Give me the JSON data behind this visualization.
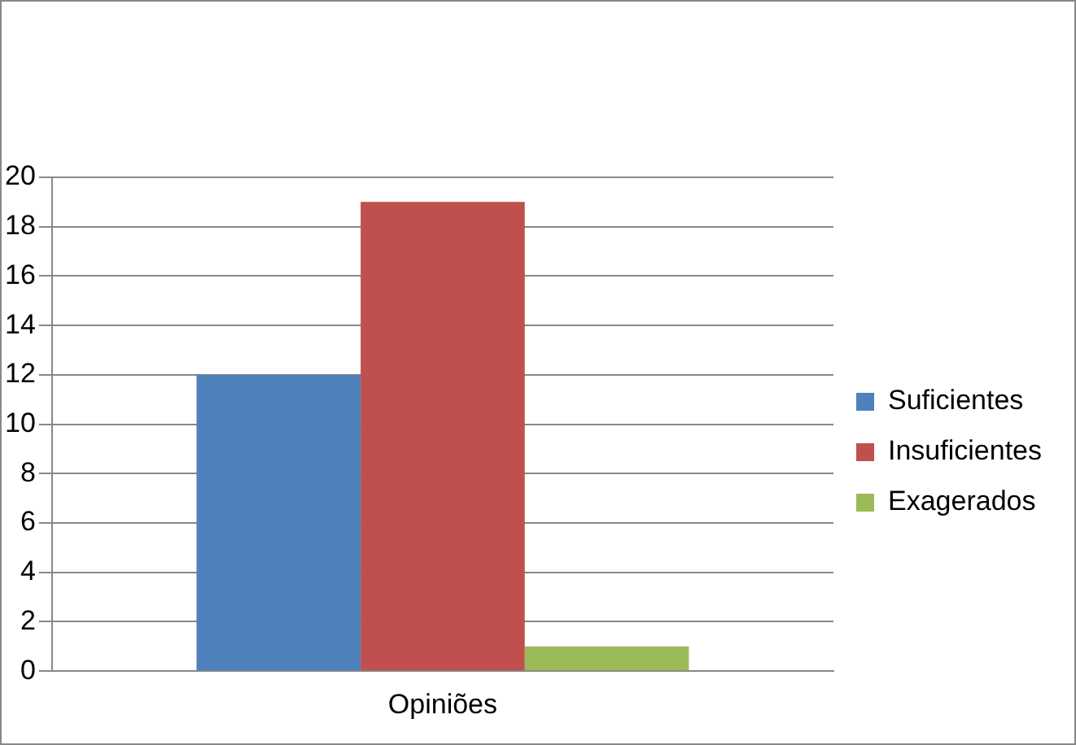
{
  "chart_data": {
    "type": "bar",
    "categories": [
      "Opiniões"
    ],
    "series": [
      {
        "name": "Suficientes",
        "color": "#4f81bd",
        "values": [
          12
        ]
      },
      {
        "name": "Insuficientes",
        "color": "#c0504d",
        "values": [
          19
        ]
      },
      {
        "name": "Exagerados",
        "color": "#9bbb59",
        "values": [
          1
        ]
      }
    ],
    "ylim": [
      0,
      20
    ],
    "yticks": [
      0,
      2,
      4,
      6,
      8,
      10,
      12,
      14,
      16,
      18,
      20
    ],
    "grid": "y",
    "legend": "right"
  }
}
